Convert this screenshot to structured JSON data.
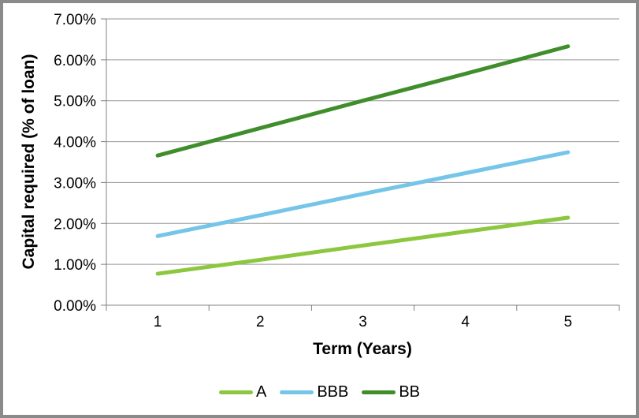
{
  "chart_data": {
    "type": "line",
    "title": "",
    "x": [
      1,
      2,
      3,
      4,
      5
    ],
    "x_tick_labels": [
      "1",
      "2",
      "3",
      "4",
      "5"
    ],
    "y_tick_labels": [
      "0.00%",
      "1.00%",
      "2.00%",
      "3.00%",
      "4.00%",
      "5.00%",
      "6.00%",
      "7.00%"
    ],
    "xlabel": "Term (Years)",
    "ylabel": "Capital required (% of loan)",
    "ylim": [
      0,
      7
    ],
    "ytick_step": 1,
    "grid": "horizontal",
    "legend_position": "bottom",
    "series": [
      {
        "name": "A",
        "color": "#8dc63f",
        "values": [
          0.77,
          1.11,
          1.46,
          1.8,
          2.14
        ]
      },
      {
        "name": "BBB",
        "color": "#75c5e8",
        "values": [
          1.69,
          2.2,
          2.72,
          3.23,
          3.74
        ]
      },
      {
        "name": "BB",
        "color": "#3f8e2b",
        "values": [
          3.66,
          4.33,
          5.0,
          5.66,
          6.33
        ]
      }
    ]
  },
  "frame": {
    "background": "#ffffff",
    "border_color": "#8a8a8a",
    "axis_color": "#808080",
    "gridline_color": "#969696",
    "text_color": "#000000"
  }
}
